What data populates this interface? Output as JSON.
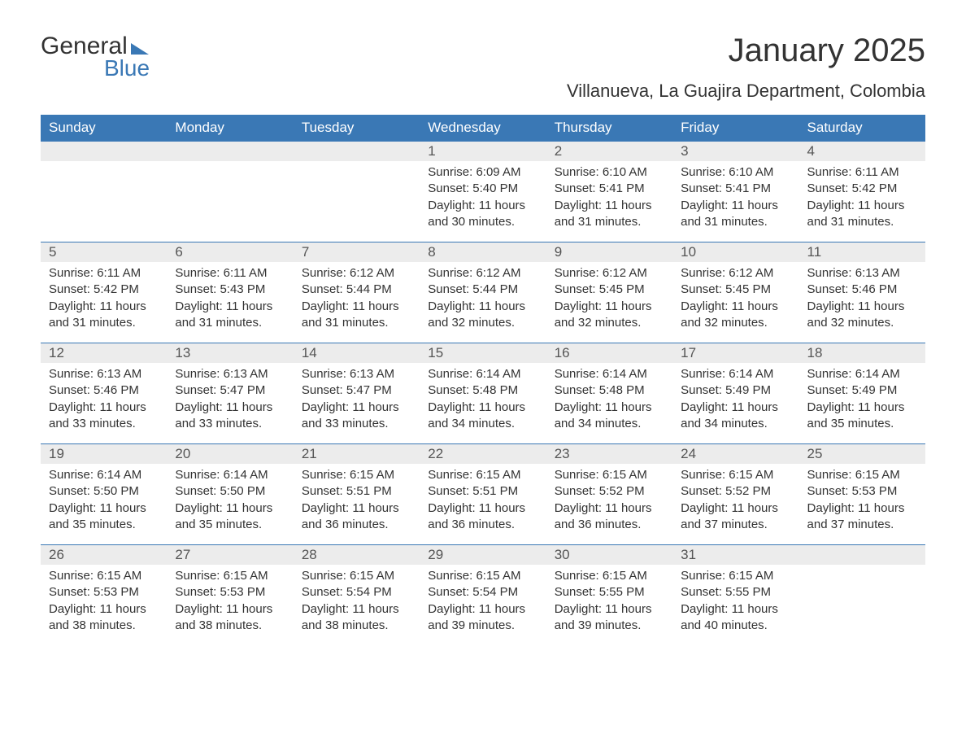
{
  "logo": {
    "text1": "General",
    "text2": "Blue"
  },
  "colors": {
    "accent": "#3a78b5",
    "header_bg": "#3a78b5",
    "header_text": "#ffffff",
    "daynum_bg": "#ececec",
    "body_bg": "#ffffff",
    "text": "#333333"
  },
  "title": "January 2025",
  "location": "Villanueva, La Guajira Department, Colombia",
  "day_headers": [
    "Sunday",
    "Monday",
    "Tuesday",
    "Wednesday",
    "Thursday",
    "Friday",
    "Saturday"
  ],
  "weeks": [
    [
      {
        "empty": true
      },
      {
        "empty": true
      },
      {
        "empty": true
      },
      {
        "day": "1",
        "sunrise": "Sunrise: 6:09 AM",
        "sunset": "Sunset: 5:40 PM",
        "daylight1": "Daylight: 11 hours",
        "daylight2": "and 30 minutes."
      },
      {
        "day": "2",
        "sunrise": "Sunrise: 6:10 AM",
        "sunset": "Sunset: 5:41 PM",
        "daylight1": "Daylight: 11 hours",
        "daylight2": "and 31 minutes."
      },
      {
        "day": "3",
        "sunrise": "Sunrise: 6:10 AM",
        "sunset": "Sunset: 5:41 PM",
        "daylight1": "Daylight: 11 hours",
        "daylight2": "and 31 minutes."
      },
      {
        "day": "4",
        "sunrise": "Sunrise: 6:11 AM",
        "sunset": "Sunset: 5:42 PM",
        "daylight1": "Daylight: 11 hours",
        "daylight2": "and 31 minutes."
      }
    ],
    [
      {
        "day": "5",
        "sunrise": "Sunrise: 6:11 AM",
        "sunset": "Sunset: 5:42 PM",
        "daylight1": "Daylight: 11 hours",
        "daylight2": "and 31 minutes."
      },
      {
        "day": "6",
        "sunrise": "Sunrise: 6:11 AM",
        "sunset": "Sunset: 5:43 PM",
        "daylight1": "Daylight: 11 hours",
        "daylight2": "and 31 minutes."
      },
      {
        "day": "7",
        "sunrise": "Sunrise: 6:12 AM",
        "sunset": "Sunset: 5:44 PM",
        "daylight1": "Daylight: 11 hours",
        "daylight2": "and 31 minutes."
      },
      {
        "day": "8",
        "sunrise": "Sunrise: 6:12 AM",
        "sunset": "Sunset: 5:44 PM",
        "daylight1": "Daylight: 11 hours",
        "daylight2": "and 32 minutes."
      },
      {
        "day": "9",
        "sunrise": "Sunrise: 6:12 AM",
        "sunset": "Sunset: 5:45 PM",
        "daylight1": "Daylight: 11 hours",
        "daylight2": "and 32 minutes."
      },
      {
        "day": "10",
        "sunrise": "Sunrise: 6:12 AM",
        "sunset": "Sunset: 5:45 PM",
        "daylight1": "Daylight: 11 hours",
        "daylight2": "and 32 minutes."
      },
      {
        "day": "11",
        "sunrise": "Sunrise: 6:13 AM",
        "sunset": "Sunset: 5:46 PM",
        "daylight1": "Daylight: 11 hours",
        "daylight2": "and 32 minutes."
      }
    ],
    [
      {
        "day": "12",
        "sunrise": "Sunrise: 6:13 AM",
        "sunset": "Sunset: 5:46 PM",
        "daylight1": "Daylight: 11 hours",
        "daylight2": "and 33 minutes."
      },
      {
        "day": "13",
        "sunrise": "Sunrise: 6:13 AM",
        "sunset": "Sunset: 5:47 PM",
        "daylight1": "Daylight: 11 hours",
        "daylight2": "and 33 minutes."
      },
      {
        "day": "14",
        "sunrise": "Sunrise: 6:13 AM",
        "sunset": "Sunset: 5:47 PM",
        "daylight1": "Daylight: 11 hours",
        "daylight2": "and 33 minutes."
      },
      {
        "day": "15",
        "sunrise": "Sunrise: 6:14 AM",
        "sunset": "Sunset: 5:48 PM",
        "daylight1": "Daylight: 11 hours",
        "daylight2": "and 34 minutes."
      },
      {
        "day": "16",
        "sunrise": "Sunrise: 6:14 AM",
        "sunset": "Sunset: 5:48 PM",
        "daylight1": "Daylight: 11 hours",
        "daylight2": "and 34 minutes."
      },
      {
        "day": "17",
        "sunrise": "Sunrise: 6:14 AM",
        "sunset": "Sunset: 5:49 PM",
        "daylight1": "Daylight: 11 hours",
        "daylight2": "and 34 minutes."
      },
      {
        "day": "18",
        "sunrise": "Sunrise: 6:14 AM",
        "sunset": "Sunset: 5:49 PM",
        "daylight1": "Daylight: 11 hours",
        "daylight2": "and 35 minutes."
      }
    ],
    [
      {
        "day": "19",
        "sunrise": "Sunrise: 6:14 AM",
        "sunset": "Sunset: 5:50 PM",
        "daylight1": "Daylight: 11 hours",
        "daylight2": "and 35 minutes."
      },
      {
        "day": "20",
        "sunrise": "Sunrise: 6:14 AM",
        "sunset": "Sunset: 5:50 PM",
        "daylight1": "Daylight: 11 hours",
        "daylight2": "and 35 minutes."
      },
      {
        "day": "21",
        "sunrise": "Sunrise: 6:15 AM",
        "sunset": "Sunset: 5:51 PM",
        "daylight1": "Daylight: 11 hours",
        "daylight2": "and 36 minutes."
      },
      {
        "day": "22",
        "sunrise": "Sunrise: 6:15 AM",
        "sunset": "Sunset: 5:51 PM",
        "daylight1": "Daylight: 11 hours",
        "daylight2": "and 36 minutes."
      },
      {
        "day": "23",
        "sunrise": "Sunrise: 6:15 AM",
        "sunset": "Sunset: 5:52 PM",
        "daylight1": "Daylight: 11 hours",
        "daylight2": "and 36 minutes."
      },
      {
        "day": "24",
        "sunrise": "Sunrise: 6:15 AM",
        "sunset": "Sunset: 5:52 PM",
        "daylight1": "Daylight: 11 hours",
        "daylight2": "and 37 minutes."
      },
      {
        "day": "25",
        "sunrise": "Sunrise: 6:15 AM",
        "sunset": "Sunset: 5:53 PM",
        "daylight1": "Daylight: 11 hours",
        "daylight2": "and 37 minutes."
      }
    ],
    [
      {
        "day": "26",
        "sunrise": "Sunrise: 6:15 AM",
        "sunset": "Sunset: 5:53 PM",
        "daylight1": "Daylight: 11 hours",
        "daylight2": "and 38 minutes."
      },
      {
        "day": "27",
        "sunrise": "Sunrise: 6:15 AM",
        "sunset": "Sunset: 5:53 PM",
        "daylight1": "Daylight: 11 hours",
        "daylight2": "and 38 minutes."
      },
      {
        "day": "28",
        "sunrise": "Sunrise: 6:15 AM",
        "sunset": "Sunset: 5:54 PM",
        "daylight1": "Daylight: 11 hours",
        "daylight2": "and 38 minutes."
      },
      {
        "day": "29",
        "sunrise": "Sunrise: 6:15 AM",
        "sunset": "Sunset: 5:54 PM",
        "daylight1": "Daylight: 11 hours",
        "daylight2": "and 39 minutes."
      },
      {
        "day": "30",
        "sunrise": "Sunrise: 6:15 AM",
        "sunset": "Sunset: 5:55 PM",
        "daylight1": "Daylight: 11 hours",
        "daylight2": "and 39 minutes."
      },
      {
        "day": "31",
        "sunrise": "Sunrise: 6:15 AM",
        "sunset": "Sunset: 5:55 PM",
        "daylight1": "Daylight: 11 hours",
        "daylight2": "and 40 minutes."
      },
      {
        "empty": true
      }
    ]
  ]
}
